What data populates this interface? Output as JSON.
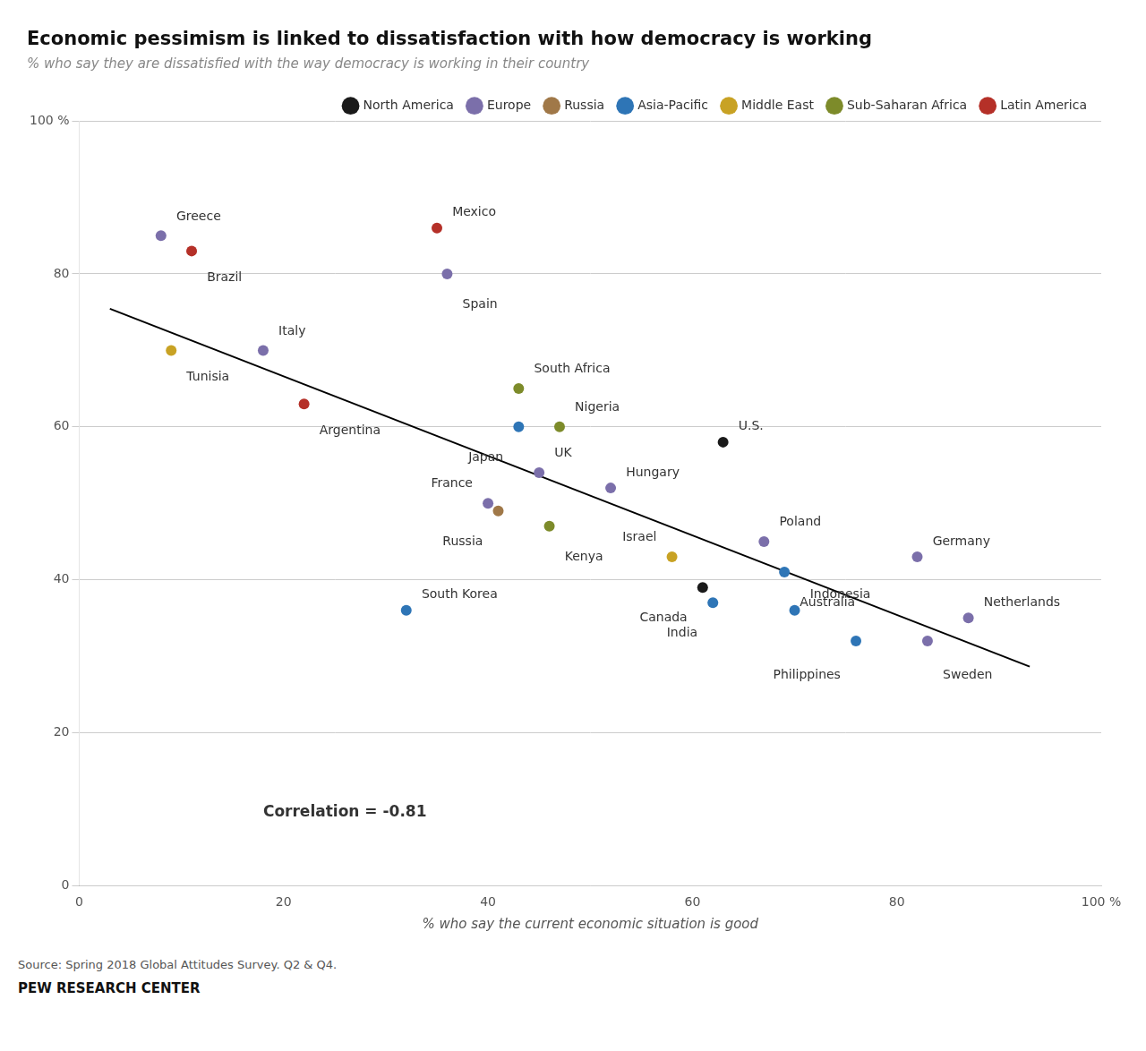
{
  "chart_data": {
    "type": "scatter",
    "title": "Economic pessimism is linked to dissatisfaction with how democracy is working",
    "subtitle": "% who say they are dissatisfied with the way democracy is working in their country",
    "x_label": "% who say the current economic situation is good",
    "source": "Source: Spring 2018 Global Attitudes Survey. Q2 & Q4.",
    "footer": "PEW RESEARCH CENTER",
    "annotation": "Correlation = -0.81",
    "series": [
      {
        "name": "North America",
        "color": "#1a1a1a",
        "x": [
          63,
          61
        ],
        "values": [
          58,
          39
        ],
        "labels": [
          "U.S.",
          "Canada"
        ]
      },
      {
        "name": "Europe",
        "color": "#7b6faa",
        "x": [
          8,
          18,
          36,
          40,
          45,
          52,
          67,
          82,
          83,
          87
        ],
        "values": [
          85,
          70,
          80,
          50,
          54,
          52,
          45,
          43,
          32,
          35
        ],
        "labels": [
          "Greece",
          "Italy",
          "Spain",
          "France",
          "UK",
          "Hungary",
          "Poland",
          "Germany",
          "Sweden",
          "Netherlands"
        ]
      },
      {
        "name": "Russia",
        "color": "#a07848",
        "x": [
          41
        ],
        "values": [
          49
        ],
        "labels": [
          "Russia"
        ]
      },
      {
        "name": "Asia-Pacific",
        "color": "#2e75b6",
        "x": [
          43,
          32,
          62,
          69,
          70,
          76
        ],
        "values": [
          60,
          36,
          37,
          41,
          36,
          32
        ],
        "labels": [
          "Japan",
          "South Korea",
          "India",
          "Australia",
          "Indonesia",
          "Philippines"
        ]
      },
      {
        "name": "Middle East",
        "color": "#c8a224",
        "x": [
          9,
          58
        ],
        "values": [
          70,
          43
        ],
        "labels": [
          "Tunisia",
          "Israel"
        ]
      },
      {
        "name": "Sub-Saharan Africa",
        "color": "#7d8b2a",
        "x": [
          43,
          47,
          46
        ],
        "values": [
          65,
          60,
          47
        ],
        "labels": [
          "South Africa",
          "Nigeria",
          "Kenya"
        ]
      },
      {
        "name": "Latin America",
        "color": "#b53028",
        "x": [
          11,
          22,
          35
        ],
        "values": [
          83,
          63,
          86
        ],
        "labels": [
          "Brazil",
          "Argentina",
          "Mexico"
        ]
      },
      {
        "type": "line",
        "color": "#000000",
        "x": [
          3,
          93
        ],
        "values": [
          75.44,
          28.64
        ]
      }
    ],
    "xlim": [
      0,
      100
    ],
    "ylim": [
      0,
      100
    ],
    "xticks": [
      0,
      20,
      40,
      60,
      80,
      {
        "value": 100,
        "label": "100 %"
      }
    ],
    "yticks": [
      0,
      20,
      40,
      60,
      80,
      {
        "value": 100,
        "label": "100 %"
      }
    ],
    "grid": "y",
    "legend": "upper right"
  }
}
